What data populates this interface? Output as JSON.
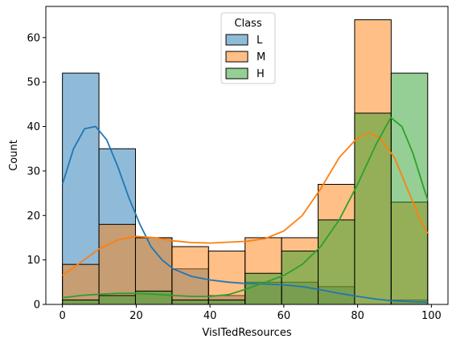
{
  "chart_data": {
    "type": "bar",
    "subtype": "overlapping-histogram-with-kde",
    "xlabel": "VisITedResources",
    "ylabel": "Count",
    "xlim": [
      -4.5,
      104.5
    ],
    "ylim": [
      0,
      67
    ],
    "xticks": [
      0,
      20,
      40,
      60,
      80,
      100
    ],
    "yticks": [
      0,
      10,
      20,
      30,
      40,
      50,
      60
    ],
    "grid": false,
    "bin_edges": [
      0,
      9.9,
      19.8,
      29.7,
      39.6,
      49.5,
      59.4,
      69.3,
      79.2,
      89.1,
      99
    ],
    "legend": {
      "title": "Class",
      "placement": "top-center"
    },
    "series": [
      {
        "name": "L",
        "color": "#1f77b4",
        "counts": [
          52,
          35,
          15,
          8,
          2,
          5,
          5,
          4,
          0,
          1
        ],
        "kde": [
          [
            0,
            27
          ],
          [
            3,
            35
          ],
          [
            6,
            39.5
          ],
          [
            9,
            40
          ],
          [
            12,
            37
          ],
          [
            15,
            31
          ],
          [
            18,
            24
          ],
          [
            21,
            18
          ],
          [
            24,
            13
          ],
          [
            27,
            10
          ],
          [
            30,
            8
          ],
          [
            35,
            6.3
          ],
          [
            40,
            5.5
          ],
          [
            45,
            5
          ],
          [
            50,
            4.7
          ],
          [
            55,
            4.6
          ],
          [
            60,
            4.4
          ],
          [
            65,
            4
          ],
          [
            70,
            3.3
          ],
          [
            75,
            2.5
          ],
          [
            80,
            1.8
          ],
          [
            85,
            1.2
          ],
          [
            90,
            0.8
          ],
          [
            95,
            0.6
          ],
          [
            99,
            0.5
          ]
        ]
      },
      {
        "name": "M",
        "color": "#ff7f0e",
        "counts": [
          9,
          18,
          15,
          13,
          12,
          15,
          15,
          27,
          64,
          23
        ],
        "kde": [
          [
            0,
            6.5
          ],
          [
            5,
            9.5
          ],
          [
            10,
            12.5
          ],
          [
            15,
            14.5
          ],
          [
            20,
            15.3
          ],
          [
            25,
            15
          ],
          [
            30,
            14.3
          ],
          [
            35,
            13.9
          ],
          [
            40,
            13.8
          ],
          [
            45,
            14
          ],
          [
            50,
            14.2
          ],
          [
            55,
            14.8
          ],
          [
            60,
            16.5
          ],
          [
            65,
            20
          ],
          [
            70,
            26
          ],
          [
            75,
            33
          ],
          [
            80,
            37.5
          ],
          [
            83,
            38.5
          ],
          [
            86,
            37.5
          ],
          [
            90,
            33
          ],
          [
            94,
            25
          ],
          [
            97,
            19
          ],
          [
            99,
            16
          ]
        ]
      },
      {
        "name": "H",
        "color": "#2ca02c",
        "counts": [
          1,
          2,
          3,
          1,
          1,
          7,
          12,
          19,
          43,
          52
        ],
        "kde": [
          [
            0,
            1.5
          ],
          [
            5,
            2
          ],
          [
            10,
            2.3
          ],
          [
            15,
            2.5
          ],
          [
            20,
            2.5
          ],
          [
            25,
            2.3
          ],
          [
            30,
            2
          ],
          [
            35,
            1.8
          ],
          [
            40,
            1.8
          ],
          [
            45,
            2.2
          ],
          [
            50,
            3.5
          ],
          [
            55,
            5
          ],
          [
            60,
            6.5
          ],
          [
            65,
            9
          ],
          [
            70,
            13
          ],
          [
            75,
            19
          ],
          [
            80,
            27
          ],
          [
            85,
            36
          ],
          [
            89,
            42
          ],
          [
            92,
            40
          ],
          [
            95,
            34
          ],
          [
            98,
            26
          ],
          [
            99,
            23.5
          ]
        ]
      }
    ]
  }
}
